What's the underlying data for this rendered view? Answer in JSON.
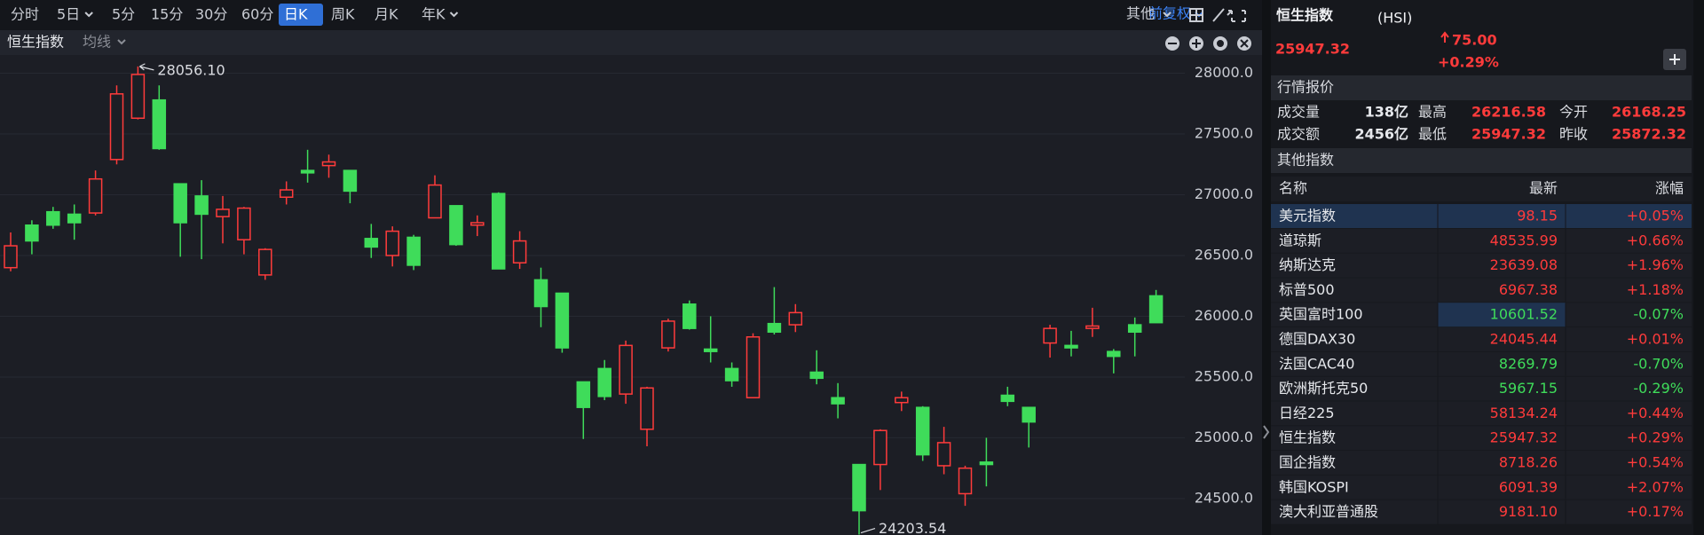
{
  "toolbar": {
    "periods": [
      "分时",
      "5日",
      "5分",
      "15分",
      "30分",
      "60分",
      "日K",
      "周K",
      "月K",
      "年K"
    ],
    "active_period": "日K",
    "adjust": "前复权",
    "other": "其他"
  },
  "chart_header": {
    "name": "恒生指数",
    "ma": "均线"
  },
  "chart_data": {
    "type": "candlestick",
    "up_color": "#ff3b3b",
    "down_color": "#3fdc5a",
    "grid": true,
    "ylim": [
      24200,
      28150
    ],
    "yticks": [
      {
        "value": 24500,
        "label": "24500.0"
      },
      {
        "value": 25000,
        "label": "25000.0"
      },
      {
        "value": 25500,
        "label": "25500.0"
      },
      {
        "value": 26000,
        "label": "26000.0"
      },
      {
        "value": 26500,
        "label": "26500.0"
      },
      {
        "value": 27000,
        "label": "27000.0"
      },
      {
        "value": 27500,
        "label": "27500.0"
      },
      {
        "value": 28000,
        "label": "28000.0"
      }
    ],
    "max_label": "28056.10",
    "min_label": "24203.54",
    "open": [
      26400,
      26750,
      26860,
      26840,
      26850,
      27290,
      27630,
      27780,
      27090,
      26990,
      26820,
      26630,
      26340,
      26980,
      27200,
      27240,
      27200,
      26640,
      26500,
      26650,
      26810,
      26910,
      26750,
      27010,
      26440,
      26300,
      26190,
      25460,
      25570,
      25360,
      25070,
      25740,
      26100,
      25730,
      25570,
      25330,
      25940,
      25930,
      25540,
      25330,
      24780,
      24780,
      25290,
      25250,
      24770,
      24540,
      24800,
      25350,
      25250,
      25780,
      25760,
      25900,
      25710,
      25930,
      26168.25
    ],
    "high": [
      26690,
      26790,
      26900,
      26920,
      27200,
      27900,
      28056.1,
      27900,
      27090,
      27120,
      26990,
      26900,
      26560,
      27110,
      27370,
      27330,
      27200,
      26760,
      26740,
      26670,
      27160,
      26910,
      26830,
      27020,
      26700,
      26400,
      26190,
      25460,
      25640,
      25800,
      25420,
      25980,
      26130,
      26000,
      25620,
      25860,
      26240,
      26100,
      25720,
      25450,
      24780,
      25070,
      25380,
      25260,
      25090,
      24770,
      25000,
      25420,
      25250,
      25930,
      25880,
      26070,
      25730,
      25990,
      26216.58
    ],
    "low": [
      26370,
      26510,
      26720,
      26630,
      26830,
      27250,
      27620,
      27370,
      26490,
      26470,
      26600,
      26510,
      26300,
      26920,
      27100,
      27140,
      26930,
      26480,
      26410,
      26380,
      26810,
      26580,
      26660,
      26390,
      26390,
      25910,
      25700,
      24990,
      25310,
      25280,
      24930,
      25710,
      25890,
      25620,
      25420,
      25330,
      25850,
      25870,
      25440,
      25160,
      24203.54,
      24570,
      25220,
      24810,
      24700,
      24440,
      24600,
      25260,
      24920,
      25660,
      25670,
      25830,
      25530,
      25670,
      25947.32
    ],
    "close": [
      26580,
      26620,
      26750,
      26770,
      27130,
      27830,
      27990,
      27380,
      26770,
      26840,
      26880,
      26890,
      26550,
      27040,
      27180,
      27270,
      27030,
      26570,
      26700,
      26420,
      27080,
      26590,
      26770,
      26390,
      26620,
      26080,
      25740,
      25250,
      25340,
      25760,
      25410,
      25960,
      25900,
      25710,
      25470,
      25830,
      25870,
      26030,
      25490,
      25280,
      24400,
      25060,
      25330,
      24860,
      24960,
      24750,
      24780,
      25300,
      25130,
      25900,
      25740,
      25920,
      25670,
      25870,
      25947.32
    ]
  },
  "quote": {
    "name": "恒生指数",
    "code": "(HSI)",
    "price": "25947.32",
    "change": "75.00",
    "change_pct": "+0.29%"
  },
  "market": {
    "title": "行情报价",
    "rows": [
      [
        [
          "成交量",
          "138亿"
        ],
        [
          "最高",
          "26216.58"
        ],
        [
          "今开",
          "26168.25"
        ]
      ],
      [
        [
          "成交额",
          "2456亿"
        ],
        [
          "最低",
          "25947.32"
        ],
        [
          "昨收",
          "25872.32"
        ]
      ]
    ]
  },
  "others": {
    "title": "其他指数",
    "header": [
      "名称",
      "最新",
      "涨幅"
    ],
    "rows": [
      [
        "美元指数",
        "98.15",
        "+0.05%"
      ],
      [
        "道琼斯",
        "48535.99",
        "+0.66%"
      ],
      [
        "纳斯达克",
        "23639.08",
        "+1.96%"
      ],
      [
        "标普500",
        "6967.38",
        "+1.18%"
      ],
      [
        "英国富时100",
        "10601.52",
        "-0.07%"
      ],
      [
        "德国DAX30",
        "24045.44",
        "+0.01%"
      ],
      [
        "法国CAC40",
        "8269.79",
        "-0.70%"
      ],
      [
        "欧洲斯托克50",
        "5967.15",
        "-0.29%"
      ],
      [
        "日经225",
        "58134.24",
        "+0.44%"
      ],
      [
        "恒生指数",
        "25947.32",
        "+0.29%"
      ],
      [
        "国企指数",
        "8718.26",
        "+0.54%"
      ],
      [
        "韩国KOSPI",
        "6091.39",
        "+2.07%"
      ],
      [
        "澳大利亚普通股",
        "9181.10",
        "+0.17%"
      ]
    ]
  }
}
